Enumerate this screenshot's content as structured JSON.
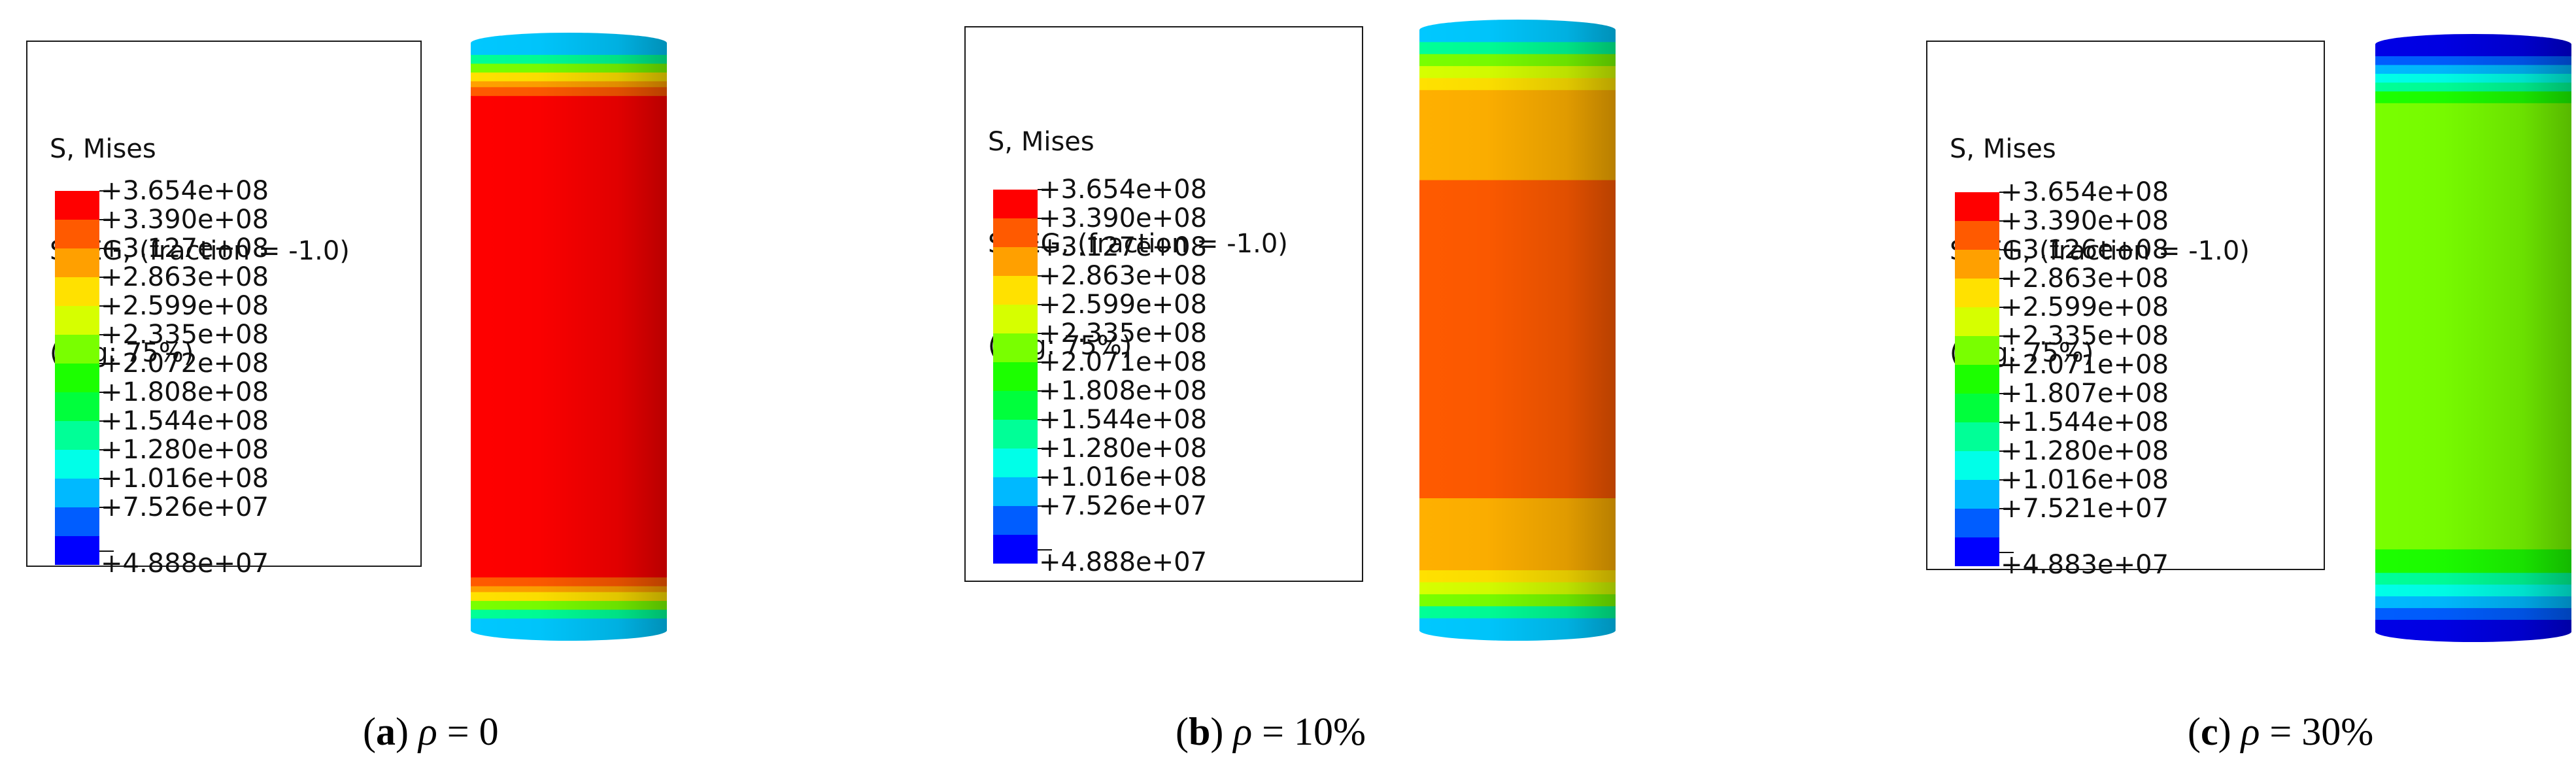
{
  "legend": {
    "line1": "S, Mises",
    "line2": "SNEG, (fraction = -1.0)",
    "line3": "(Avg: 75%)",
    "colors": [
      "#ff0000",
      "#ff5a00",
      "#ffa000",
      "#ffe100",
      "#d6ff00",
      "#79ff00",
      "#1cff00",
      "#00ff3c",
      "#00ff97",
      "#00ffe8",
      "#00b9ff",
      "#005dff",
      "#0000ff"
    ]
  },
  "panels": [
    {
      "values": [
        "+3.654e+08",
        "+3.390e+08",
        "+3.127e+08",
        "+2.863e+08",
        "+2.599e+08",
        "+2.335e+08",
        "+2.072e+08",
        "+1.808e+08",
        "+1.544e+08",
        "+1.280e+08",
        "+1.016e+08",
        "+7.526e+07",
        "+4.888e+07"
      ],
      "caption_letter": "a",
      "caption_rest": " = 0",
      "body_color": "#ff0000",
      "band_color": "#ff6a00"
    },
    {
      "values": [
        "+3.654e+08",
        "+3.390e+08",
        "+3.127e+08",
        "+2.863e+08",
        "+2.599e+08",
        "+2.335e+08",
        "+2.071e+08",
        "+1.808e+08",
        "+1.544e+08",
        "+1.280e+08",
        "+1.016e+08",
        "+7.526e+07",
        "+4.888e+07"
      ],
      "caption_letter": "b",
      "caption_rest": " = 10%",
      "body_color": "#ff5a00",
      "band_color": "#ffb000"
    },
    {
      "values": [
        "+3.654e+08",
        "+3.390e+08",
        "+3.126e+08",
        "+2.863e+08",
        "+2.599e+08",
        "+2.335e+08",
        "+2.071e+08",
        "+1.807e+08",
        "+1.544e+08",
        "+1.280e+08",
        "+1.016e+08",
        "+7.521e+07",
        "+4.883e+07"
      ],
      "caption_letter": "c",
      "caption_rest": " = 30%",
      "body_color": "#7ae600",
      "band_color": "#1cff00"
    }
  ],
  "caption_symbol": "ρ"
}
